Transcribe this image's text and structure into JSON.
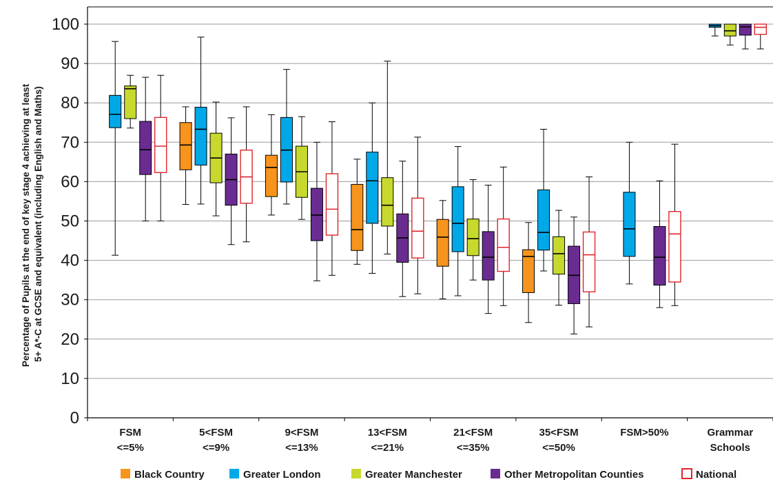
{
  "chart_data": {
    "type": "box",
    "ylabel_lines": [
      "Percentage of Pupils at the end of key stage 4 achieving at least",
      "5+ A*-C at GCSE and equivalent (including English and Maths)"
    ],
    "xlabel": "",
    "ylim": [
      0,
      100
    ],
    "yticks": [
      0,
      10,
      20,
      30,
      40,
      50,
      60,
      70,
      80,
      90,
      100
    ],
    "grid": "horizontal",
    "legend_position": "bottom",
    "categories": [
      [
        "FSM",
        "<=5%"
      ],
      [
        "5<FSM",
        "<=9%"
      ],
      [
        "9<FSM",
        "<=13%"
      ],
      [
        "13<FSM",
        "<=21%"
      ],
      [
        "21<FSM",
        "<=35%"
      ],
      [
        "35<FSM",
        "<=50%"
      ],
      [
        "FSM>50%",
        ""
      ],
      [
        "Grammar",
        "Schools"
      ]
    ],
    "series": [
      {
        "name": "Black Country",
        "color": "#f7941d",
        "style": "filled",
        "boxes": [
          null,
          {
            "min": 54.2,
            "q1": 63,
            "median": 69.3,
            "q3": 75,
            "max": 79
          },
          {
            "min": 51.5,
            "q1": 56.2,
            "median": 63.6,
            "q3": 66.7,
            "max": 77
          },
          {
            "min": 39,
            "q1": 42.5,
            "median": 47.8,
            "q3": 59.3,
            "max": 65.7
          },
          {
            "min": 30.2,
            "q1": 38.5,
            "median": 45.9,
            "q3": 50.4,
            "max": 55.2
          },
          {
            "min": 24.2,
            "q1": 31.8,
            "median": 41,
            "q3": 42.7,
            "max": 49.6
          },
          null,
          null
        ]
      },
      {
        "name": "Greater London",
        "color": "#00a8e8",
        "style": "filled",
        "boxes": [
          {
            "min": 41.3,
            "q1": 73.7,
            "median": 77.1,
            "q3": 81.9,
            "max": 95.6
          },
          {
            "min": 54.3,
            "q1": 64.2,
            "median": 73.3,
            "q3": 78.9,
            "max": 96.7
          },
          {
            "min": 54.3,
            "q1": 59.9,
            "median": 68,
            "q3": 76.3,
            "max": 88.5
          },
          {
            "min": 36.7,
            "q1": 49.4,
            "median": 60.2,
            "q3": 67.5,
            "max": 80
          },
          {
            "min": 31,
            "q1": 42.2,
            "median": 49.4,
            "q3": 58.7,
            "max": 68.9
          },
          {
            "min": 37.3,
            "q1": 42.6,
            "median": 47.1,
            "q3": 57.9,
            "max": 73.3
          },
          {
            "min": 34,
            "q1": 41,
            "median": 48,
            "q3": 57.3,
            "max": 70
          },
          {
            "min": 97,
            "q1": 99.2,
            "median": 99.6,
            "q3": 100,
            "max": 100
          }
        ]
      },
      {
        "name": "Greater Manchester",
        "color": "#c7d92c",
        "style": "filled",
        "boxes": [
          {
            "min": 73.6,
            "q1": 76,
            "median": 83.6,
            "q3": 84.3,
            "max": 87
          },
          {
            "min": 51.3,
            "q1": 59.7,
            "median": 66,
            "q3": 72.3,
            "max": 80.2
          },
          {
            "min": 50.4,
            "q1": 56,
            "median": 62.5,
            "q3": 69,
            "max": 76.5
          },
          {
            "min": 41.6,
            "q1": 48.7,
            "median": 54,
            "q3": 61,
            "max": 90.6
          },
          {
            "min": 35,
            "q1": 41.2,
            "median": 45.5,
            "q3": 50.5,
            "max": 60.5
          },
          {
            "min": 28.6,
            "q1": 36.5,
            "median": 41.7,
            "q3": 46,
            "max": 52.7
          },
          null,
          {
            "min": 94.7,
            "q1": 97,
            "median": 98.3,
            "q3": 100,
            "max": 100
          }
        ]
      },
      {
        "name": "Other Metropolitan Counties",
        "color": "#6a2c91",
        "style": "filled",
        "boxes": [
          {
            "min": 50,
            "q1": 61.8,
            "median": 68.1,
            "q3": 75.3,
            "max": 86.5
          },
          {
            "min": 44,
            "q1": 54,
            "median": 60.5,
            "q3": 67,
            "max": 76.2
          },
          {
            "min": 34.8,
            "q1": 45,
            "median": 51.5,
            "q3": 58.3,
            "max": 70
          },
          {
            "min": 30.8,
            "q1": 39.5,
            "median": 45.7,
            "q3": 51.8,
            "max": 65.2
          },
          {
            "min": 26.5,
            "q1": 35,
            "median": 40.8,
            "q3": 47.3,
            "max": 59.1
          },
          {
            "min": 21.3,
            "q1": 29,
            "median": 36.2,
            "q3": 43.6,
            "max": 51
          },
          {
            "min": 28,
            "q1": 33.7,
            "median": 40.8,
            "q3": 48.6,
            "max": 60.2
          },
          {
            "min": 93.7,
            "q1": 97.2,
            "median": 99.3,
            "q3": 100,
            "max": 100
          }
        ]
      },
      {
        "name": "National",
        "color": "#e0242b",
        "style": "outline",
        "boxes": [
          {
            "min": 50,
            "q1": 62.3,
            "median": 69,
            "q3": 76.3,
            "max": 87
          },
          {
            "min": 44.7,
            "q1": 54.5,
            "median": 61.2,
            "q3": 68,
            "max": 79
          },
          {
            "min": 36.2,
            "q1": 46.4,
            "median": 53,
            "q3": 62,
            "max": 75.2
          },
          {
            "min": 31.5,
            "q1": 40.6,
            "median": 47.4,
            "q3": 55.8,
            "max": 71.3
          },
          {
            "min": 28.5,
            "q1": 37.2,
            "median": 43.3,
            "q3": 50.5,
            "max": 63.7
          },
          {
            "min": 23.1,
            "q1": 32,
            "median": 41.4,
            "q3": 47.2,
            "max": 61.2
          },
          {
            "min": 28.5,
            "q1": 34.5,
            "median": 46.7,
            "q3": 52.4,
            "max": 69.5
          },
          {
            "min": 93.7,
            "q1": 97.4,
            "median": 99.2,
            "q3": 100,
            "max": 100
          }
        ]
      }
    ]
  }
}
